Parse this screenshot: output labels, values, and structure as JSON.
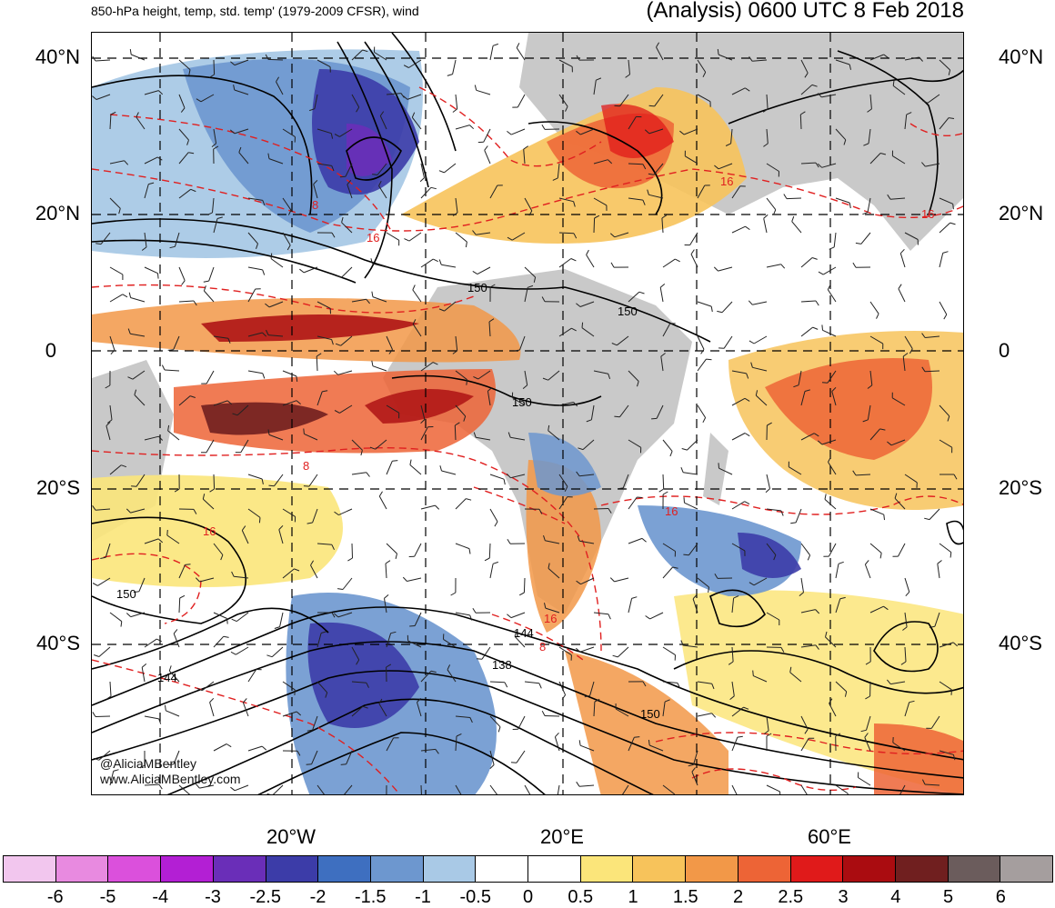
{
  "header": {
    "left_title": "850-hPa height, temp, std. temp' (1979-2009 CFSR), wind",
    "right_title": "(Analysis) 0600 UTC 8 Feb 2018"
  },
  "axes": {
    "lat_labels": [
      "40°N",
      "20°N",
      "0",
      "20°S",
      "40°S"
    ],
    "lon_labels": [
      "20°W",
      "20°E",
      "60°E"
    ]
  },
  "contour_labels": {
    "height": [
      "150",
      "150",
      "150",
      "150",
      "144",
      "144",
      "138",
      "150"
    ],
    "temp": [
      "16",
      "16",
      "16",
      "16",
      "16",
      "16",
      "8",
      "8",
      "8"
    ]
  },
  "credits": {
    "twitter": "@AliciaMBentley",
    "website": "www.AliciaMBentley.com"
  },
  "colorbar": {
    "colors": [
      "#f2c6ee",
      "#e88ae0",
      "#db50dc",
      "#b31fd4",
      "#6a2eb8",
      "#3c3ca8",
      "#3e6fc0",
      "#6d97cf",
      "#a9c9e6",
      "#ffffff",
      "#ffffff",
      "#fbe57a",
      "#f7c35b",
      "#f29848",
      "#ed6436",
      "#e01a1a",
      "#aa0c10",
      "#701f1f",
      "#6b5c5c",
      "#a59e9e"
    ],
    "tick_labels": [
      "-6",
      "-5",
      "-4",
      "-3",
      "-2.5",
      "-2",
      "-1.5",
      "-1",
      "-0.5",
      "0",
      "0.5",
      "1",
      "1.5",
      "2",
      "2.5",
      "3",
      "4",
      "5",
      "6"
    ]
  },
  "colors": {
    "land_gray": "#c9c9c9",
    "height_contour": "#000000",
    "temp_contour": "#e02020"
  }
}
